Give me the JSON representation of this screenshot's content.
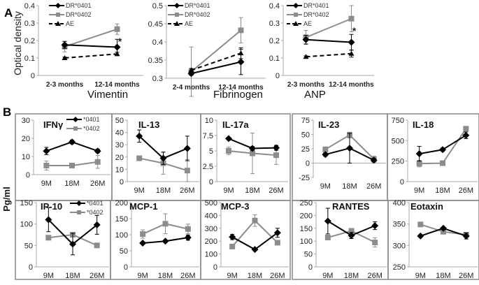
{
  "figure": {
    "panel_a_label": "A",
    "panel_b_label": "B",
    "panel_a_ylabel": "Optical density",
    "panel_b_ylabel": "Pg/ml"
  },
  "colors": {
    "dr0401": "#000000",
    "dr0402": "#8c8c8c",
    "ae": "#000000",
    "box": "#888888",
    "axis": "#aaaaaa"
  },
  "chart_data": [
    {
      "type": "line",
      "panel": "A",
      "title": "Vimentin",
      "x": [
        "2-3 months",
        "12-14 months"
      ],
      "ylim": [
        0,
        0.4
      ],
      "yticks": [
        "0",
        "0.1",
        "0.2",
        "0.3",
        "0.4"
      ],
      "legend": [
        "DR*0401",
        "DR*0402",
        "AE"
      ],
      "annotation": "*",
      "series": [
        {
          "name": "DR*0401",
          "values": [
            0.175,
            0.162
          ],
          "err": [
            0.02,
            0.045
          ]
        },
        {
          "name": "DR*0402",
          "values": [
            0.165,
            0.265
          ],
          "err": [
            0.03,
            0.03
          ]
        },
        {
          "name": "AE",
          "values": [
            0.1,
            0.123
          ],
          "err": [
            0.005,
            0.01
          ]
        }
      ]
    },
    {
      "type": "line",
      "panel": "A",
      "title": "Fibrinogen",
      "x": [
        "2-4 months",
        "12-14 months"
      ],
      "ylim": [
        0.3,
        0.5
      ],
      "yticks": [
        "0.3",
        "0.35",
        "0.4",
        "0.45",
        "0.5"
      ],
      "legend": [
        "DR*0401",
        "DR*0402",
        "AE"
      ],
      "series": [
        {
          "name": "DR*0401",
          "values": [
            0.313,
            0.345
          ],
          "err": [
            0.005,
            0.035
          ]
        },
        {
          "name": "DR*0402",
          "values": [
            0.318,
            0.432
          ],
          "err": [
            0.068,
            0.035
          ]
        },
        {
          "name": "AE",
          "values": [
            0.322,
            0.369
          ],
          "err": [
            0.005,
            0.015
          ]
        }
      ]
    },
    {
      "type": "line",
      "panel": "A",
      "title": "ANP",
      "x": [
        "2-3 months",
        "12-14 months"
      ],
      "ylim": [
        0,
        0.4
      ],
      "yticks": [
        "0",
        "0.1",
        "0.2",
        "0.3",
        "0.4"
      ],
      "legend": [
        "DR*0401",
        "DR*0402",
        "AE"
      ],
      "annotation": "*",
      "series": [
        {
          "name": "DR*0401",
          "values": [
            0.205,
            0.19
          ],
          "err": [
            0.025,
            0.045
          ]
        },
        {
          "name": "DR*0402",
          "values": [
            0.218,
            0.325
          ],
          "err": [
            0.04,
            0.075
          ]
        },
        {
          "name": "AE",
          "values": [
            0.107,
            0.125
          ],
          "err": [
            0.005,
            0.02
          ]
        }
      ]
    },
    {
      "type": "line",
      "panel": "B",
      "title": "IFNγ",
      "x": [
        "9M",
        "18M",
        "26M"
      ],
      "ylim": [
        0,
        30
      ],
      "yticks": [
        "0",
        "10",
        "20",
        "30"
      ],
      "legend": [
        "*0401",
        "*0402"
      ],
      "series": [
        {
          "name": "*0401",
          "values": [
            13,
            18,
            13
          ],
          "err": [
            2,
            1,
            1
          ]
        },
        {
          "name": "*0402",
          "values": [
            5,
            5,
            7
          ],
          "err": [
            2.5,
            0.5,
            3.5
          ]
        }
      ]
    },
    {
      "type": "line",
      "panel": "B",
      "title": "IL-13",
      "x": [
        "9M",
        "18M",
        "26M"
      ],
      "ylim": [
        0,
        50
      ],
      "yticks": [
        "0",
        "10",
        "20",
        "30",
        "40",
        "50"
      ],
      "series": [
        {
          "name": "*0401",
          "values": [
            37,
            19,
            27
          ],
          "err": [
            5,
            5,
            10
          ]
        },
        {
          "name": "*0402",
          "values": [
            19,
            15,
            9
          ],
          "err": [
            1,
            9,
            9
          ]
        }
      ]
    },
    {
      "type": "line",
      "panel": "B",
      "title": "IL-17a",
      "x": [
        "9M",
        "18M",
        "26M"
      ],
      "ylim": [
        0,
        10
      ],
      "yticks": [
        "0",
        "2.5",
        "5",
        "7.5",
        "10"
      ],
      "series": [
        {
          "name": "*0401",
          "values": [
            7,
            5.4,
            5.5
          ],
          "err": [
            0.2,
            0.3,
            0.4
          ]
        },
        {
          "name": "*0402",
          "values": [
            5,
            4.6,
            4.3
          ],
          "err": [
            0.6,
            3.3,
            1.5
          ]
        }
      ]
    },
    {
      "type": "line",
      "panel": "B",
      "title": "IL-23",
      "x": [
        "9M",
        "18M",
        "26M"
      ],
      "ylim": [
        -25,
        75
      ],
      "yticks": [
        "-25",
        "0",
        "25",
        "50",
        "75"
      ],
      "series": [
        {
          "name": "*0401",
          "values": [
            15,
            26,
            5
          ],
          "err": [
            3,
            26,
            3
          ]
        },
        {
          "name": "*0402",
          "values": [
            24,
            49,
            7
          ],
          "err": [
            2,
            5,
            5
          ]
        }
      ]
    },
    {
      "type": "line",
      "panel": "B",
      "title": "IL-18",
      "x": [
        "9M",
        "18M",
        "26M"
      ],
      "ylim": [
        0,
        750
      ],
      "yticks": [
        "0",
        "250",
        "500",
        "750"
      ],
      "series": [
        {
          "name": "*0401",
          "values": [
            340,
            390,
            565
          ],
          "err": [
            90,
            20,
            40
          ]
        },
        {
          "name": "*0402",
          "values": [
            220,
            225,
            645
          ],
          "err": [
            40,
            5,
            20
          ]
        }
      ]
    },
    {
      "type": "line",
      "panel": "B",
      "title": "IP-10",
      "x": [
        "9M",
        "18M",
        "26M"
      ],
      "ylim": [
        0,
        150
      ],
      "yticks": [
        "0",
        "50",
        "100",
        "150"
      ],
      "legend": [
        "*0401",
        "*0402"
      ],
      "series": [
        {
          "name": "*0401",
          "values": [
            110,
            53,
            98
          ],
          "err": [
            28,
            25,
            22
          ]
        },
        {
          "name": "*0402",
          "values": [
            68,
            75,
            50
          ],
          "err": [
            0,
            0,
            0
          ]
        }
      ]
    },
    {
      "type": "line",
      "panel": "B",
      "title": "MCP-1",
      "x": [
        "9M",
        "18M",
        "26M"
      ],
      "ylim": [
        0,
        200
      ],
      "yticks": [
        "0",
        "50",
        "100",
        "150",
        "200"
      ],
      "series": [
        {
          "name": "*0401",
          "values": [
            74,
            80,
            91
          ],
          "err": [
            3,
            3,
            8
          ]
        },
        {
          "name": "*0402",
          "values": [
            102,
            134,
            118
          ],
          "err": [
            13,
            31,
            15
          ]
        }
      ]
    },
    {
      "type": "line",
      "panel": "B",
      "title": "MCP-3",
      "x": [
        "9M",
        "18M",
        "26M"
      ],
      "ylim": [
        0,
        500
      ],
      "yticks": [
        "0",
        "100",
        "200",
        "300",
        "400",
        "500"
      ],
      "series": [
        {
          "name": "*0401",
          "values": [
            232,
            135,
            265
          ],
          "err": [
            20,
            8,
            35
          ]
        },
        {
          "name": "*0402",
          "values": [
            158,
            360,
            188
          ],
          "err": [
            5,
            45,
            10
          ]
        }
      ]
    },
    {
      "type": "line",
      "panel": "B",
      "title": "RANTES",
      "x": [
        "9M",
        "18M",
        "26M"
      ],
      "ylim": [
        0,
        250
      ],
      "yticks": [
        "0",
        "50",
        "100",
        "150",
        "200",
        "250"
      ],
      "series": [
        {
          "name": "*0401",
          "values": [
            178,
            122,
            160
          ],
          "err": [
            50,
            12,
            15
          ]
        },
        {
          "name": "*0402",
          "values": [
            114,
            140,
            95
          ],
          "err": [
            5,
            5,
            18
          ]
        }
      ]
    },
    {
      "type": "line",
      "panel": "B",
      "title": "Eotaxin",
      "x": [
        "9M",
        "18M",
        "26M"
      ],
      "ylim": [
        250,
        400
      ],
      "yticks": [
        "250",
        "300",
        "350",
        "400"
      ],
      "series": [
        {
          "name": "*0401",
          "values": [
            322,
            340,
            322
          ],
          "err": [
            2,
            3,
            7
          ]
        },
        {
          "name": "*0402",
          "values": [
            349,
            332,
            325
          ],
          "err": [
            2,
            3,
            5
          ]
        }
      ]
    }
  ]
}
